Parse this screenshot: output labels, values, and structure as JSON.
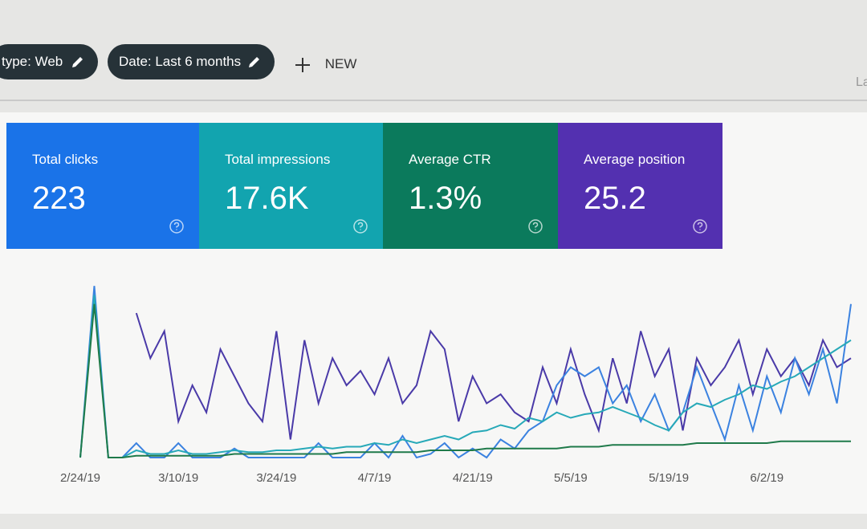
{
  "filters": [
    "type: Web",
    "Date: Last 6 months"
  ],
  "new_button": "NEW",
  "truncated_label": "La",
  "metrics": [
    {
      "label": "Total clicks",
      "value": "223",
      "color": "#1a73e8"
    },
    {
      "label": "Total impressions",
      "value": "17.6K",
      "color": "#12a4af"
    },
    {
      "label": "Average CTR",
      "value": "1.3%",
      "color": "#0b7a5c"
    },
    {
      "label": "Average position",
      "value": "25.2",
      "color": "#5330b0"
    }
  ],
  "chart_data": {
    "type": "line",
    "categories": [
      "2/24/19",
      null,
      null,
      null,
      null,
      null,
      null,
      "3/10/19",
      null,
      null,
      null,
      null,
      null,
      null,
      "3/24/19",
      null,
      null,
      null,
      null,
      null,
      null,
      "4/7/19",
      null,
      null,
      null,
      null,
      null,
      null,
      "4/21/19",
      null,
      null,
      null,
      null,
      null,
      null,
      "5/5/19",
      null,
      null,
      null,
      null,
      null,
      null,
      "5/19/19",
      null,
      null,
      null,
      null,
      null,
      null,
      "6/2/19",
      null,
      null,
      null,
      null,
      null,
      null
    ],
    "ylim": [
      0,
      100
    ],
    "series": [
      {
        "color": "#4a3aa8",
        "values": [
          null,
          null,
          null,
          null,
          80,
          55,
          70,
          20,
          40,
          25,
          60,
          45,
          30,
          20,
          70,
          10,
          65,
          30,
          55,
          40,
          48,
          35,
          55,
          30,
          40,
          70,
          60,
          20,
          45,
          30,
          35,
          25,
          20,
          50,
          30,
          60,
          35,
          15,
          55,
          30,
          70,
          45,
          60,
          15,
          55,
          40,
          50,
          65,
          35,
          60,
          45,
          55,
          40,
          65,
          50,
          55
        ]
      },
      {
        "color": "#3b82e0",
        "values": [
          0,
          95,
          0,
          0,
          8,
          0,
          0,
          8,
          0,
          0,
          0,
          5,
          0,
          0,
          0,
          0,
          0,
          8,
          0,
          0,
          0,
          8,
          0,
          12,
          0,
          2,
          8,
          0,
          5,
          0,
          10,
          5,
          15,
          20,
          40,
          50,
          45,
          50,
          30,
          40,
          20,
          35,
          15,
          25,
          50,
          30,
          10,
          40,
          15,
          45,
          25,
          55,
          35,
          60,
          30,
          85
        ]
      },
      {
        "color": "#27a9b8",
        "values": [
          0,
          90,
          0,
          0,
          4,
          2,
          2,
          4,
          2,
          2,
          3,
          4,
          3,
          3,
          4,
          4,
          5,
          6,
          5,
          6,
          6,
          8,
          7,
          10,
          8,
          10,
          12,
          10,
          14,
          15,
          18,
          16,
          22,
          20,
          25,
          22,
          24,
          25,
          28,
          25,
          22,
          18,
          15,
          25,
          30,
          28,
          32,
          35,
          40,
          38,
          42,
          45,
          50,
          55,
          60,
          65
        ]
      },
      {
        "color": "#1f7a4a",
        "values": [
          0,
          85,
          0,
          0,
          1,
          1,
          1,
          1,
          1,
          1,
          1,
          2,
          2,
          2,
          2,
          2,
          2,
          2,
          2,
          3,
          3,
          3,
          3,
          3,
          3,
          4,
          4,
          4,
          4,
          5,
          5,
          5,
          5,
          5,
          5,
          6,
          6,
          6,
          7,
          7,
          7,
          7,
          7,
          7,
          8,
          8,
          8,
          8,
          8,
          8,
          9,
          9,
          9,
          9,
          9,
          9
        ]
      }
    ]
  }
}
